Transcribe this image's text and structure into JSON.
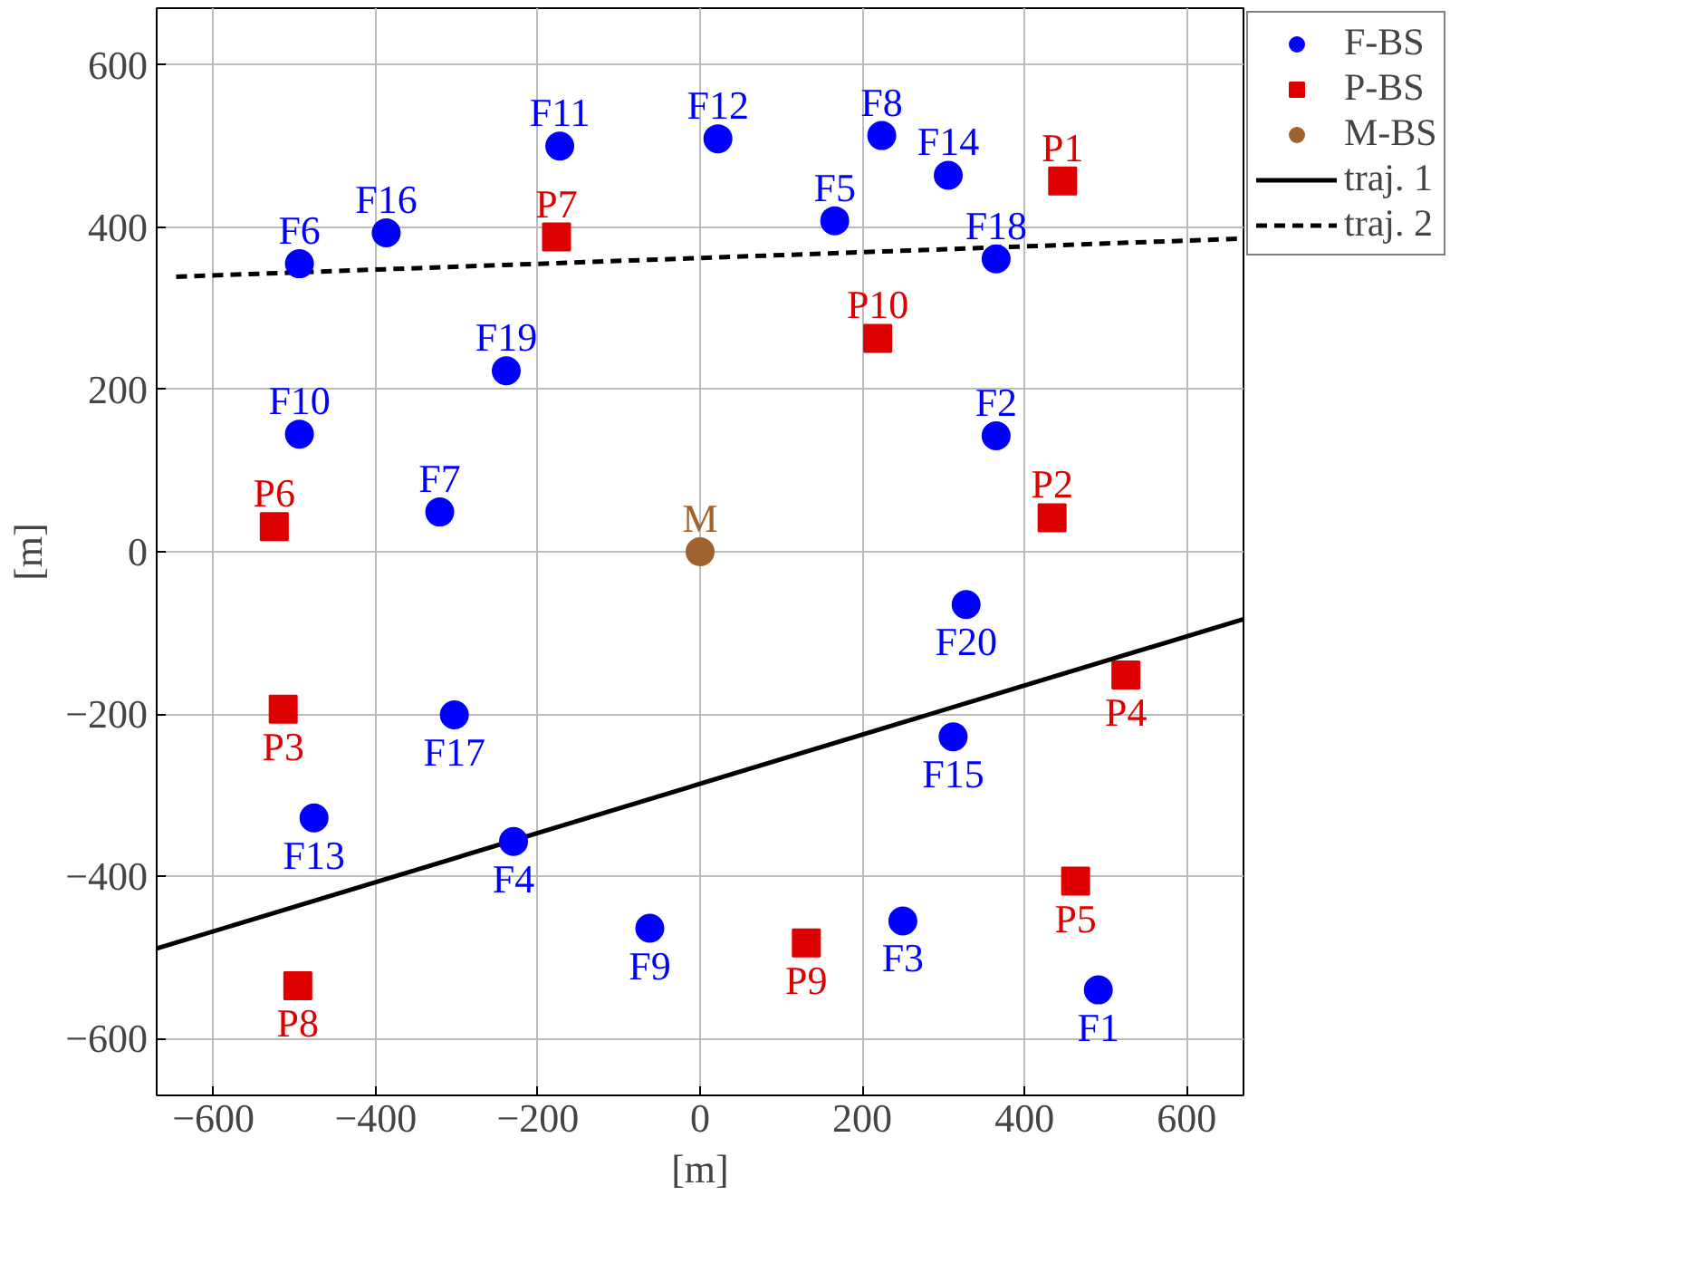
{
  "chart_data": {
    "type": "scatter",
    "xlabel": "[m]",
    "ylabel": "[m]",
    "xlim": [
      -670,
      670
    ],
    "ylim": [
      -670,
      670
    ],
    "xticks": [
      {
        "value": -600,
        "label": "−600"
      },
      {
        "value": -400,
        "label": "−400"
      },
      {
        "value": -200,
        "label": "−200"
      },
      0,
      200,
      400,
      600
    ],
    "yticks": [
      {
        "value": -600,
        "label": "−600"
      },
      {
        "value": -400,
        "label": "−400"
      },
      {
        "value": -200,
        "label": "−200"
      },
      0,
      200,
      400,
      600
    ],
    "grid": true,
    "legend": "top right",
    "series": [
      {
        "type": "line",
        "color": "#000000",
        "line_style": "solid",
        "marker": "none",
        "x": [
          -670,
          670
        ],
        "values": [
          -489,
          -83
        ],
        "name": "traj. 1"
      },
      {
        "type": "line",
        "color": "#000000",
        "line_style": "dashed",
        "marker": "none",
        "x": [
          -646,
          670
        ],
        "values": [
          339,
          386
        ],
        "name": "traj. 2"
      },
      {
        "name": "F-BS",
        "marker": "circle",
        "color": "#0000ff",
        "x": [
          491,
          365,
          250,
          -230,
          166,
          -494,
          -321,
          224,
          -62,
          -494,
          -173,
          22,
          -476,
          306,
          312,
          -387,
          -303,
          365,
          -239,
          328
        ],
        "values": [
          -540,
          143,
          -455,
          -357,
          408,
          355,
          49,
          513,
          -464,
          145,
          500,
          509,
          -328,
          464,
          -228,
          393,
          -201,
          361,
          223,
          -65
        ],
        "value_labels": [
          "F1",
          "F2",
          "F3",
          "F4",
          "F5",
          "F6",
          "F7",
          "F8",
          "F9",
          "F10",
          "F11",
          "F12",
          "F13",
          "F14",
          "F15",
          "F16",
          "F17",
          "F18",
          "F19",
          "F20"
        ]
      },
      {
        "name": "P-BS",
        "marker": "square",
        "color": "#dd0000",
        "x": [
          447,
          434,
          -514,
          525,
          463,
          -525,
          -177,
          -496,
          131,
          219
        ],
        "values": [
          457,
          42,
          -194,
          -152,
          -406,
          31,
          388,
          -535,
          -482,
          263
        ],
        "value_labels": [
          "P1",
          "P2",
          "P3",
          "P4",
          "P5",
          "P6",
          "P7",
          "P8",
          "P9",
          "P10"
        ]
      },
      {
        "name": "M-BS",
        "marker": "circle",
        "color": "#a0622d",
        "x": [
          0
        ],
        "values": [
          0
        ],
        "value_labels": [
          "M"
        ]
      }
    ]
  }
}
